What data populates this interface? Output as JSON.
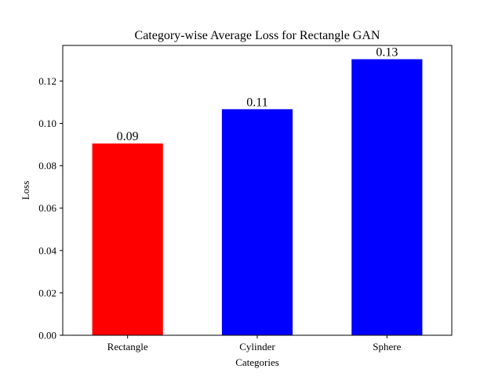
{
  "chart_data": {
    "type": "bar",
    "title": "Category-wise Average Loss for Rectangle GAN",
    "xlabel": "Categories",
    "ylabel": "Loss",
    "categories": [
      "Rectangle",
      "Cylinder",
      "Sphere"
    ],
    "values": [
      0.0905,
      0.1067,
      0.1303
    ],
    "value_labels": [
      "0.09",
      "0.11",
      "0.13"
    ],
    "bar_colors": [
      "#ff0000",
      "#0000ff",
      "#0000ff"
    ],
    "ylim": [
      0,
      0.1368
    ],
    "yticks": [
      0.0,
      0.02,
      0.04,
      0.06,
      0.08,
      0.1,
      0.12
    ],
    "ytick_labels": [
      "0.00",
      "0.02",
      "0.04",
      "0.06",
      "0.08",
      "0.10",
      "0.12"
    ],
    "grid": false,
    "legend": "none"
  }
}
